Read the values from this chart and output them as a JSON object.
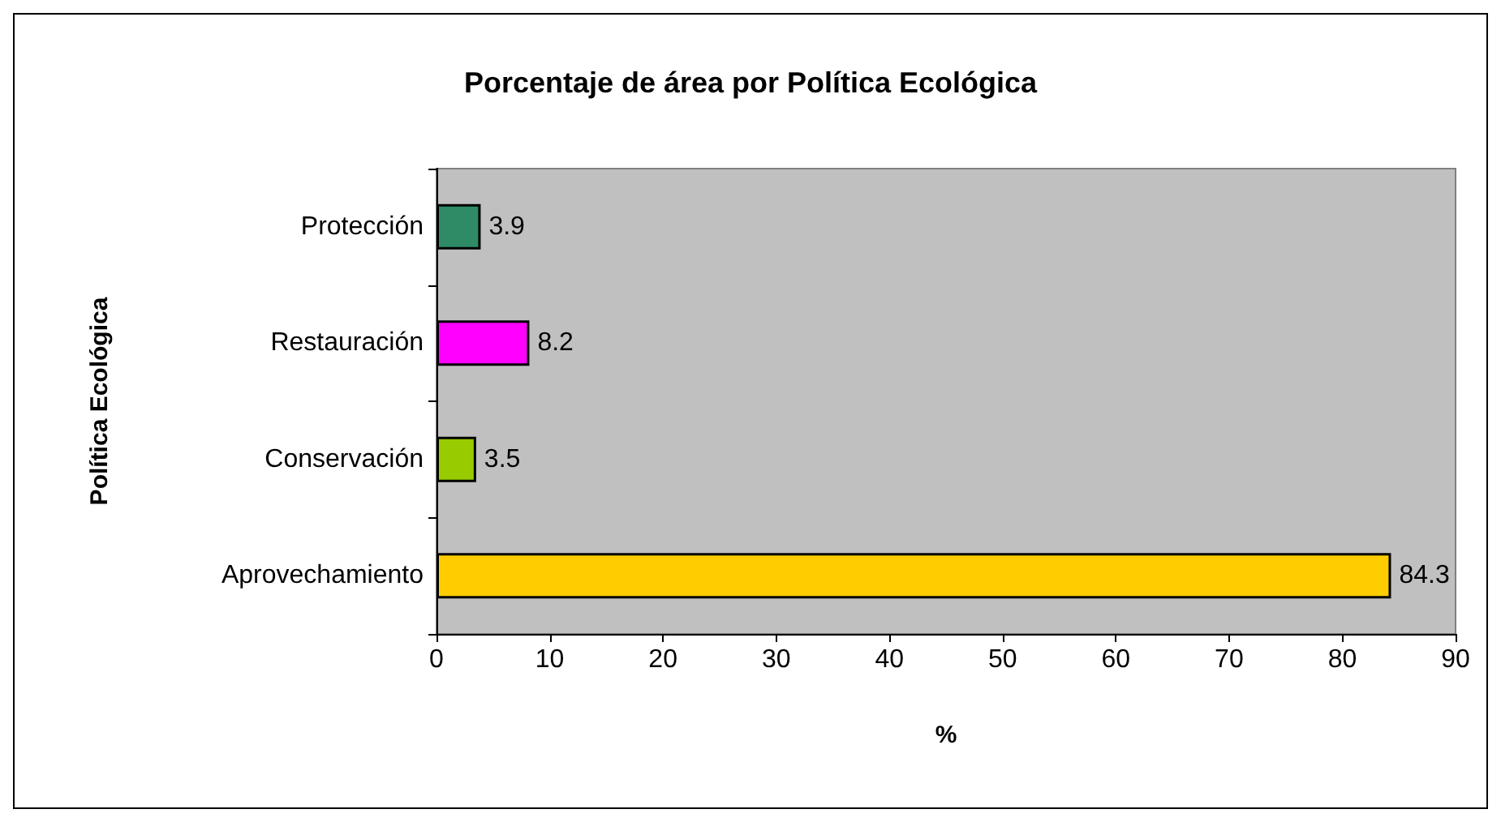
{
  "chart_data": {
    "type": "bar",
    "orientation": "horizontal",
    "title": "Porcentaje de área por Política Ecológica",
    "xlabel": "%",
    "ylabel": "Política Ecológica",
    "categories": [
      "Protección",
      "Restauración",
      "Conservación",
      "Aprovechamiento"
    ],
    "values": [
      3.9,
      8.2,
      3.5,
      84.3
    ],
    "colors": [
      "#2e8b66",
      "#ff00ff",
      "#99cc00",
      "#ffcc00"
    ],
    "xlim": [
      0,
      90
    ],
    "xticks": [
      0,
      10,
      20,
      30,
      40,
      50,
      60,
      70,
      80,
      90
    ],
    "data_labels": true,
    "grid": false
  }
}
